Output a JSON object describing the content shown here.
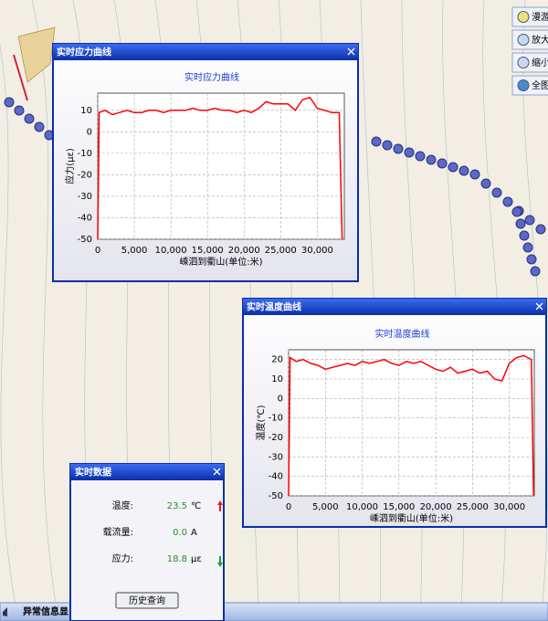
{
  "toolbar": {
    "buttons": [
      "漫游",
      "放大",
      "缩小",
      "全图"
    ]
  },
  "windows": [
    {
      "title": "实时应力曲线"
    },
    {
      "title": "实时温度曲线"
    },
    {
      "title": "实时数据"
    }
  ],
  "chart_data": [
    {
      "type": "line",
      "title": "实时应力曲线",
      "x_label": "嵊泗到衢山(单位:米)",
      "y_label": "应力(με)",
      "x": [
        0,
        200,
        1000,
        2000,
        3000,
        4000,
        5000,
        6000,
        7000,
        8000,
        9000,
        10000,
        11000,
        12000,
        13000,
        14000,
        15000,
        16000,
        17000,
        18000,
        19000,
        20000,
        21000,
        22000,
        23000,
        24000,
        25000,
        26000,
        27000,
        28000,
        29000,
        30000,
        31000,
        32000,
        33000,
        33400
      ],
      "series": [
        {
          "name": "应力",
          "color": "#ff0000",
          "values": [
            -50,
            9,
            10,
            8,
            9,
            10,
            9,
            9,
            10,
            10,
            9,
            10,
            10,
            10,
            11,
            10,
            10,
            11,
            10,
            10,
            9,
            10,
            9,
            11,
            14,
            13,
            13,
            13,
            10,
            15,
            16,
            11,
            10,
            9,
            9,
            -50
          ]
        }
      ],
      "xlim": [
        0,
        33700
      ],
      "ylim": [
        -50,
        18
      ],
      "xticks": [
        0,
        {
          "value": 5000,
          "label": "5,000"
        },
        {
          "value": 10000,
          "label": "10,000"
        },
        {
          "value": 15000,
          "label": "15,000"
        },
        {
          "value": 20000,
          "label": "20,000"
        },
        {
          "value": 25000,
          "label": "25,000"
        },
        {
          "value": 30000,
          "label": "30,000"
        }
      ],
      "yticks": [
        10,
        0,
        -10,
        -20,
        -30,
        -40,
        -50
      ],
      "grid": true
    },
    {
      "type": "line",
      "title": "实时温度曲线",
      "x_label": "嵊泗到衢山(单位:米)",
      "y_label": "温度(℃)",
      "x": [
        0,
        200,
        1000,
        2000,
        3000,
        4000,
        5000,
        6000,
        7000,
        8000,
        9000,
        10000,
        11000,
        12000,
        13000,
        14000,
        15000,
        16000,
        17000,
        18000,
        19000,
        20000,
        21000,
        22000,
        23000,
        24000,
        25000,
        26000,
        27000,
        28000,
        29000,
        30000,
        31000,
        32000,
        33000,
        33300
      ],
      "series": [
        {
          "name": "温度",
          "color": "#ff0000",
          "values": [
            -50,
            21,
            19,
            20,
            18,
            17,
            15,
            16,
            17,
            18,
            17,
            19,
            18,
            19,
            20,
            18,
            17,
            19,
            18,
            19,
            17,
            15,
            14,
            16,
            13,
            14,
            15,
            13,
            14,
            10,
            9,
            18,
            21,
            22,
            20,
            -50
          ]
        }
      ],
      "xlim": [
        0,
        33400
      ],
      "ylim": [
        -50,
        25
      ],
      "xticks": [
        0,
        {
          "value": 5000,
          "label": "5,000"
        },
        {
          "value": 10000,
          "label": "10,000"
        },
        {
          "value": 15000,
          "label": "15,000"
        },
        {
          "value": 20000,
          "label": "20,000"
        },
        {
          "value": 25000,
          "label": "25,000"
        },
        {
          "value": 30000,
          "label": "30,000"
        }
      ],
      "yticks": [
        20,
        10,
        0,
        -10,
        -20,
        -30,
        -40,
        -50
      ],
      "grid": true
    }
  ],
  "data_panel": {
    "rows": [
      {
        "label": "温度:",
        "value": "23.5",
        "unit": "℃"
      },
      {
        "label": "载流量:",
        "value": "0.0",
        "unit": "A"
      },
      {
        "label": "应力:",
        "value": "18.8",
        "unit": "με"
      }
    ],
    "button": "历史查询"
  },
  "status_tab": "异常信息显"
}
